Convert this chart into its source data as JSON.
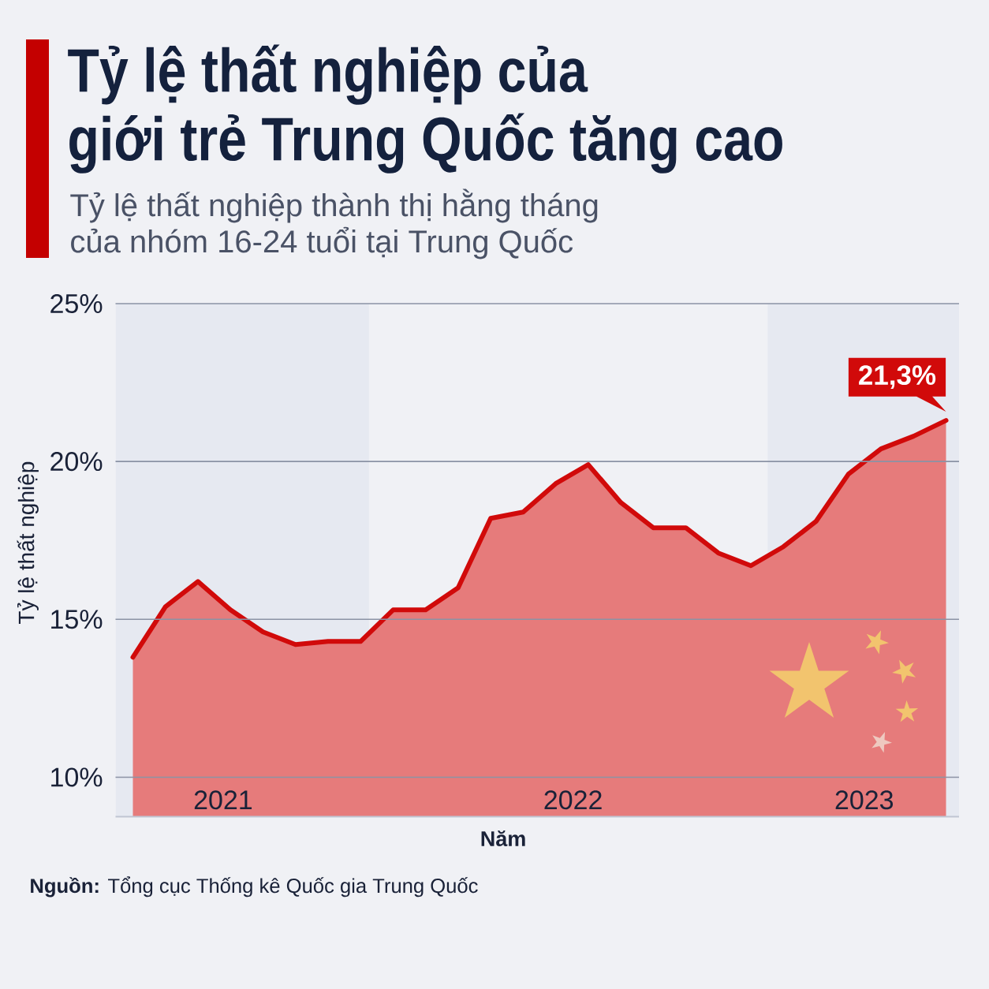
{
  "chart_data": {
    "type": "area",
    "title": "Tỷ lệ thất nghiệp của\ngiới trẻ Trung Quốc tăng cao",
    "subtitle": "Tỷ lệ thất nghiệp thành thị hằng tháng của nhóm 16-24 tuổi tại Trung Quốc",
    "xlabel": "Năm",
    "ylabel": "Tỷ lệ thất nghiệp",
    "x": [
      "2021-05",
      "2021-06",
      "2021-07",
      "2021-08",
      "2021-09",
      "2021-10",
      "2021-11",
      "2021-12",
      "2022-01",
      "2022-02",
      "2022-03",
      "2022-04",
      "2022-05",
      "2022-06",
      "2022-07",
      "2022-08",
      "2022-09",
      "2022-10",
      "2022-11",
      "2022-12",
      "2023-01",
      "2023-02",
      "2023-03",
      "2023-04",
      "2023-05",
      "2023-06"
    ],
    "values": [
      13.8,
      15.4,
      16.2,
      15.3,
      14.6,
      14.2,
      14.3,
      14.3,
      15.3,
      15.3,
      16.0,
      18.2,
      18.4,
      19.3,
      19.9,
      18.7,
      17.9,
      17.9,
      17.1,
      16.7,
      17.3,
      18.1,
      19.6,
      20.4,
      20.8,
      21.3
    ],
    "color": "#d10a0a",
    "xlim": [
      "2021-04-15",
      "2023-06-13"
    ],
    "ylim": [
      8.75,
      25
    ],
    "xticks": [
      {
        "value": "2021-07-25",
        "label": "2021"
      },
      {
        "value": "2022-06-17",
        "label": "2022"
      },
      {
        "value": "2023-03-16",
        "label": "2023"
      }
    ],
    "yticks": [
      {
        "value": 10,
        "label": "10%"
      },
      {
        "value": 15,
        "label": "15%"
      },
      {
        "value": 20,
        "label": "20%"
      },
      {
        "value": 25,
        "label": "25%"
      }
    ],
    "grid": "y",
    "bands": [
      {
        "axis": "x",
        "from": "2021-04-15",
        "to": "2021-12-09",
        "color": "#e6e9f1"
      },
      {
        "axis": "x",
        "from": "2022-12-17",
        "to": "2023-06-13",
        "color": "#e6e9f1"
      }
    ],
    "annotations": [
      {
        "text": "21,3%",
        "x": "2023-06",
        "y": 21.3
      },
      "**Nguồn:** Tổng cục Thống kê Quốc gia Trung Quốc"
    ]
  }
}
